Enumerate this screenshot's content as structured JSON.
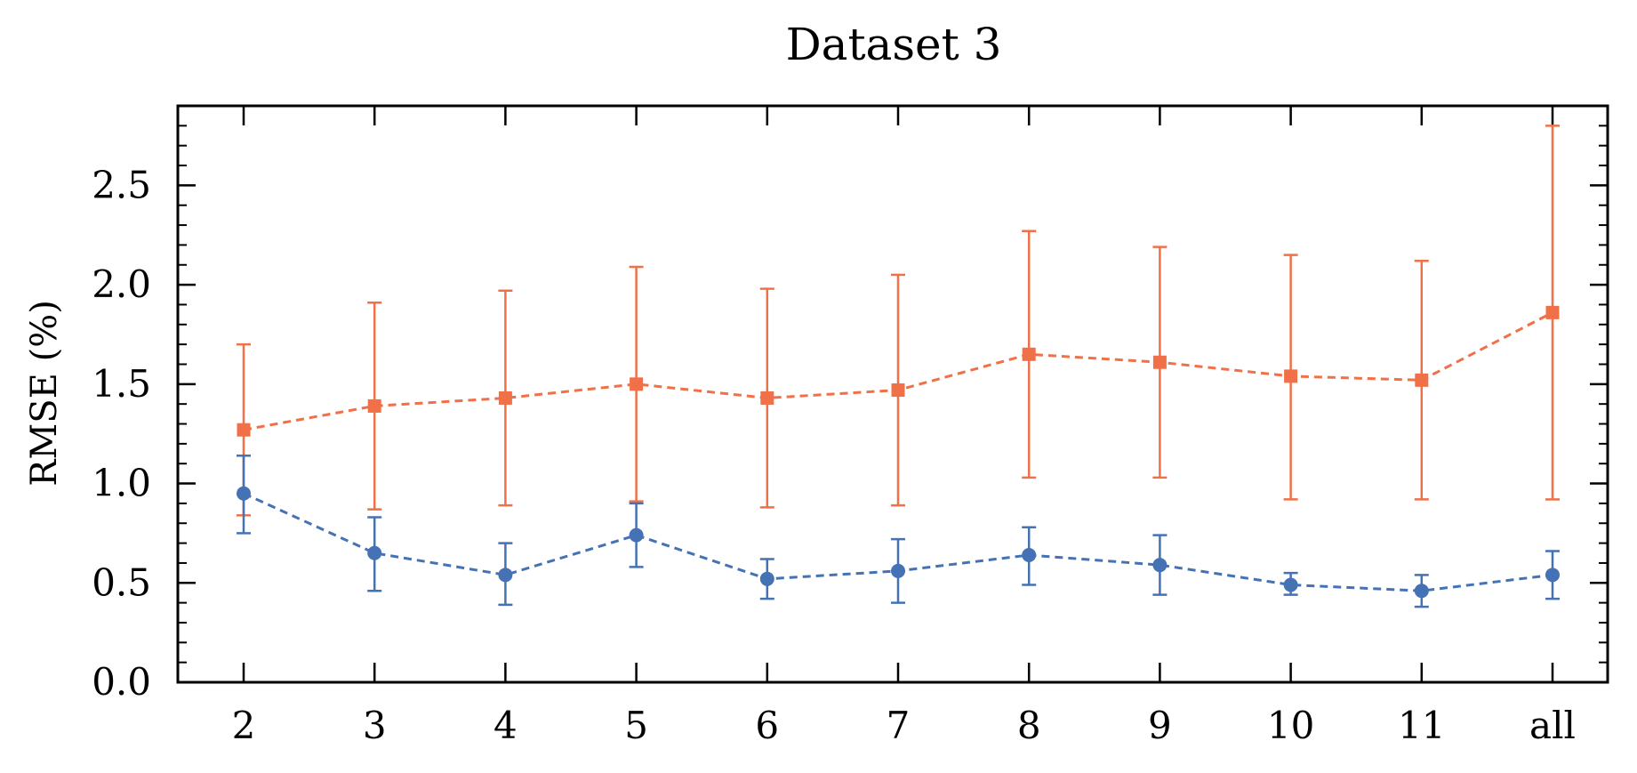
{
  "chart_data": {
    "type": "line",
    "title": "Dataset 3",
    "xlabel": "",
    "ylabel": "RMSE (%)",
    "categories": [
      "2",
      "3",
      "4",
      "5",
      "6",
      "7",
      "8",
      "9",
      "10",
      "11",
      "all"
    ],
    "ylim": [
      0,
      2.9
    ],
    "yticks": [
      "0.0",
      "0.5",
      "1.0",
      "1.5",
      "2.0",
      "2.5"
    ],
    "grid": false,
    "series": [
      {
        "color": "#f07048",
        "marker": "square",
        "linestyle": "dashed",
        "values": [
          1.27,
          1.39,
          1.43,
          1.5,
          1.43,
          1.47,
          1.65,
          1.61,
          1.54,
          1.52,
          1.86
        ],
        "err_low": [
          0.84,
          0.87,
          0.89,
          0.91,
          0.88,
          0.89,
          1.03,
          1.03,
          0.92,
          0.92,
          0.92
        ],
        "err_high": [
          1.7,
          1.91,
          1.97,
          2.09,
          1.98,
          2.05,
          2.27,
          2.19,
          2.15,
          2.12,
          2.8
        ]
      },
      {
        "color": "#4472b4",
        "marker": "circle",
        "linestyle": "dashed",
        "values": [
          0.95,
          0.65,
          0.54,
          0.74,
          0.52,
          0.56,
          0.64,
          0.59,
          0.49,
          0.46,
          0.54
        ],
        "err_low": [
          0.75,
          0.46,
          0.39,
          0.58,
          0.42,
          0.4,
          0.49,
          0.44,
          0.44,
          0.38,
          0.42
        ],
        "err_high": [
          1.14,
          0.83,
          0.7,
          0.9,
          0.62,
          0.72,
          0.78,
          0.74,
          0.55,
          0.54,
          0.66
        ]
      }
    ]
  }
}
